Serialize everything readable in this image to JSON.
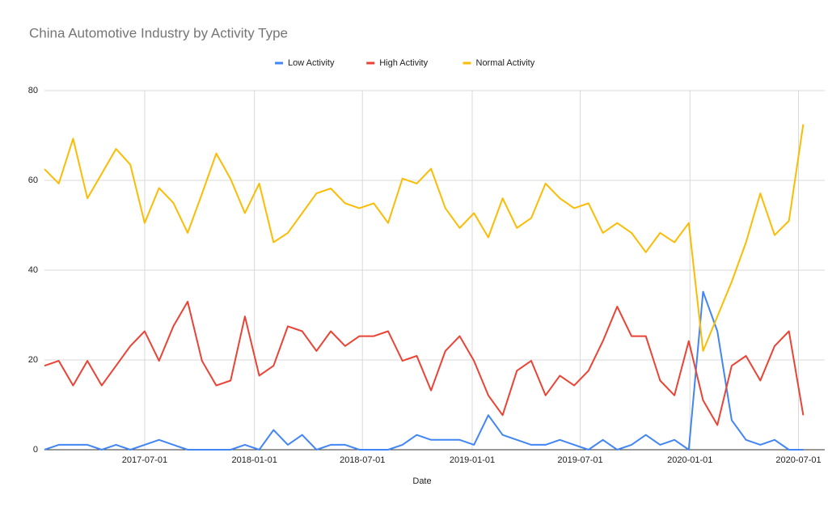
{
  "chart_data": {
    "type": "line",
    "title": "China Automotive Industry by Activity Type",
    "x_label": "Date",
    "x": [
      "2017-01-14",
      "2017-02-07",
      "2017-03-03",
      "2017-03-27",
      "2017-04-20",
      "2017-05-14",
      "2017-06-07",
      "2017-07-01",
      "2017-07-25",
      "2017-08-18",
      "2017-09-11",
      "2017-10-05",
      "2017-10-29",
      "2017-11-22",
      "2017-12-16",
      "2018-01-09",
      "2018-02-02",
      "2018-02-26",
      "2018-03-22",
      "2018-04-15",
      "2018-05-09",
      "2018-06-02",
      "2018-06-26",
      "2018-07-20",
      "2018-08-13",
      "2018-09-06",
      "2018-09-30",
      "2018-10-24",
      "2018-11-17",
      "2018-12-11",
      "2019-01-04",
      "2019-01-28",
      "2019-02-21",
      "2019-03-17",
      "2019-04-10",
      "2019-05-04",
      "2019-05-28",
      "2019-06-21",
      "2019-07-15",
      "2019-08-08",
      "2019-09-01",
      "2019-09-25",
      "2019-10-19",
      "2019-11-12",
      "2019-12-06",
      "2019-12-30",
      "2020-01-23",
      "2020-02-16",
      "2020-03-11",
      "2020-04-04",
      "2020-04-28",
      "2020-05-22",
      "2020-06-15",
      "2020-07-09"
    ],
    "series": [
      {
        "name": "Low Activity",
        "color": "#4285f4",
        "values": [
          0,
          1.1,
          1.1,
          1.1,
          0,
          1.1,
          0,
          1.1,
          2.2,
          1.1,
          0,
          0,
          0,
          0,
          1.1,
          0,
          4.4,
          1.1,
          3.3,
          0,
          1.1,
          1.1,
          0,
          0,
          0,
          1.1,
          3.3,
          2.2,
          2.2,
          2.2,
          1.1,
          7.7,
          3.3,
          2.2,
          1.1,
          1.1,
          2.2,
          1.1,
          0,
          2.2,
          0,
          1.1,
          3.3,
          1.1,
          2.2,
          0,
          35.2,
          26.4,
          6.6,
          2.2,
          1.1,
          2.2,
          0,
          0
        ]
      },
      {
        "name": "High Activity",
        "color": "#ea4335",
        "values": [
          18.7,
          19.8,
          14.3,
          19.8,
          14.3,
          18.7,
          23.1,
          26.4,
          19.8,
          27.5,
          33,
          19.8,
          14.3,
          15.4,
          29.7,
          16.5,
          18.7,
          27.5,
          26.4,
          22,
          26.4,
          23.1,
          25.3,
          25.3,
          26.4,
          19.8,
          20.9,
          13.2,
          22,
          25.3,
          19.8,
          12.1,
          7.7,
          17.6,
          19.8,
          12.1,
          16.5,
          14.3,
          17.6,
          24.2,
          31.9,
          25.3,
          25.3,
          15.4,
          12.1,
          24.2,
          11,
          5.5,
          18.7,
          20.9,
          15.4,
          23.1,
          26.4,
          7.7
        ]
      },
      {
        "name": "Normal Activity",
        "color": "#fbbc04",
        "values": [
          62.5,
          59.3,
          69.3,
          56,
          61.5,
          67,
          63.5,
          50.5,
          58.3,
          55,
          48.3,
          57,
          66,
          60.3,
          52.7,
          59.3,
          46.2,
          48.3,
          52.7,
          57.1,
          58.2,
          54.9,
          53.8,
          54.9,
          50.5,
          60.4,
          59.3,
          62.6,
          53.8,
          49.4,
          52.7,
          47.3,
          56,
          49.4,
          51.6,
          59.3,
          56,
          53.8,
          54.9,
          48.3,
          50.5,
          48.3,
          44,
          48.3,
          46.2,
          50.5,
          22,
          29.7,
          37.4,
          46.2,
          57.1,
          47.8,
          51,
          72.5
        ]
      }
    ],
    "xlim": [
      "2017-01-14",
      "2020-08-14"
    ],
    "xticks": [
      "2017-07-01",
      "2018-01-01",
      "2018-07-01",
      "2019-01-01",
      "2019-07-01",
      "2020-01-01",
      "2020-07-01"
    ],
    "ylim": [
      0,
      80
    ],
    "yticks": [
      0,
      20,
      40,
      60,
      80
    ],
    "grid": true,
    "legend": "top"
  }
}
